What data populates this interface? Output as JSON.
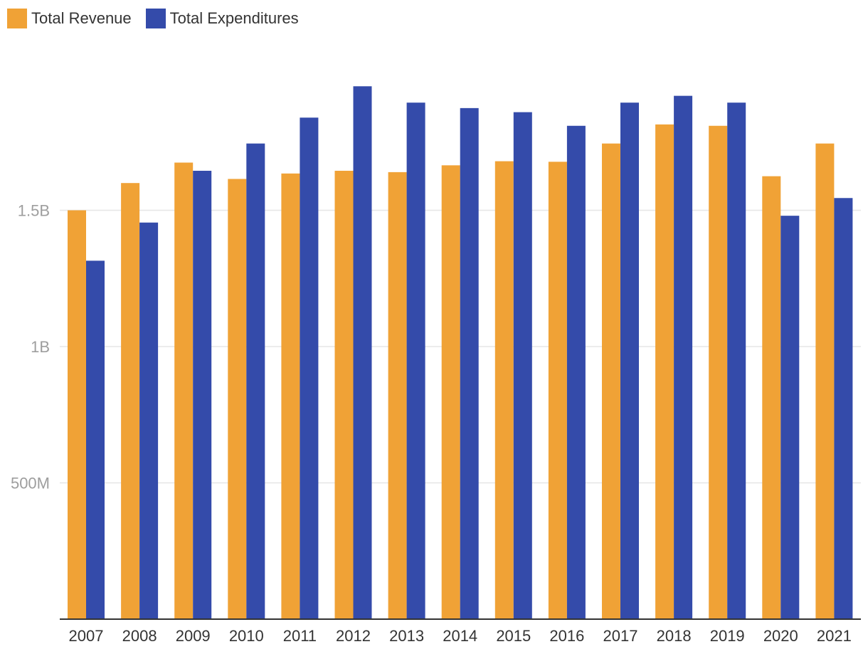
{
  "chart_data": {
    "type": "bar",
    "title": "",
    "xlabel": "",
    "ylabel": "",
    "ylim": [
      0,
      2000000000
    ],
    "grid": true,
    "legend_position": "top-left",
    "categories": [
      "2007",
      "2008",
      "2009",
      "2010",
      "2011",
      "2012",
      "2013",
      "2014",
      "2015",
      "2016",
      "2017",
      "2018",
      "2019",
      "2020",
      "2021"
    ],
    "y_ticks": [
      {
        "value": 500000000,
        "label": "500M"
      },
      {
        "value": 1000000000,
        "label": "1B"
      },
      {
        "value": 1500000000,
        "label": "1.5B"
      }
    ],
    "series": [
      {
        "name": "Total Revenue",
        "color": "#F0A236",
        "values": [
          1500000000,
          1600000000,
          1675000000,
          1615000000,
          1635000000,
          1645000000,
          1640000000,
          1665000000,
          1680000000,
          1678000000,
          1745000000,
          1815000000,
          1810000000,
          1625000000,
          1745000000
        ]
      },
      {
        "name": "Total Expenditures",
        "color": "#344BAA",
        "values": [
          1315000000,
          1455000000,
          1645000000,
          1745000000,
          1840000000,
          1955000000,
          1895000000,
          1875000000,
          1860000000,
          1810000000,
          1895000000,
          1920000000,
          1895000000,
          1480000000,
          1545000000
        ]
      }
    ]
  }
}
